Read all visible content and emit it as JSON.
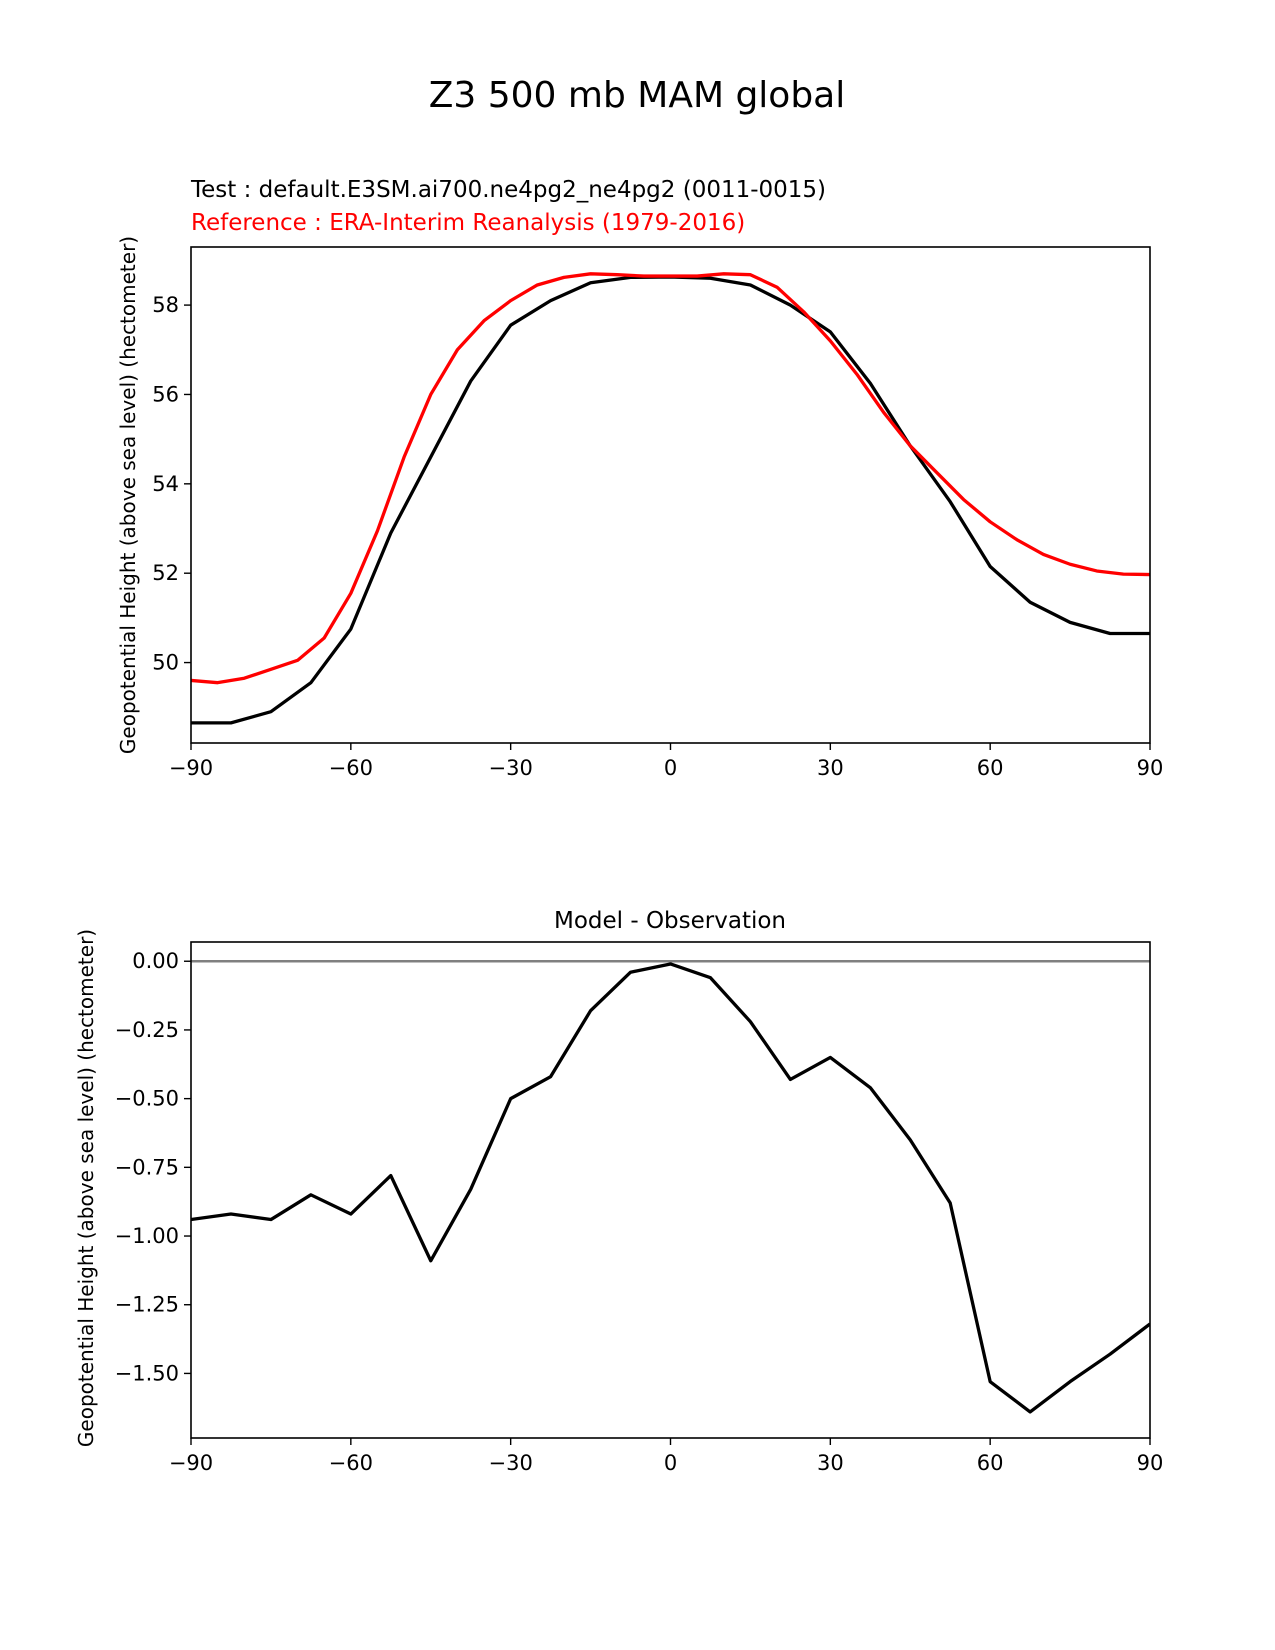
{
  "figure_title": "Z3 500 mb MAM global",
  "colors": {
    "test": "#000000",
    "reference": "#ff0000",
    "zero_line": "#808080"
  },
  "chart_data": [
    {
      "type": "line",
      "test_label": "Test : default.E3SM.ai700.ne4pg2_ne4pg2 (0011-0015)",
      "reference_label": "Reference : ERA-Interim Reanalysis (1979-2016)",
      "xlabel": "",
      "ylabel": "Geopotential Height (above sea level) (hectometer)",
      "xlim": [
        -90,
        90
      ],
      "ylim": [
        48.2,
        59.3
      ],
      "xticks": [
        -90,
        -60,
        -30,
        0,
        30,
        60,
        90
      ],
      "xtick_labels": [
        "−90",
        "−60",
        "−30",
        "0",
        "30",
        "60",
        "90"
      ],
      "yticks": [
        50,
        52,
        54,
        56,
        58
      ],
      "ytick_labels": [
        "50",
        "52",
        "54",
        "56",
        "58"
      ],
      "series": [
        {
          "name": "Test",
          "color": "#000000",
          "x": [
            -90,
            -82.5,
            -75,
            -67.5,
            -60,
            -52.5,
            -45,
            -37.5,
            -30,
            -22.5,
            -15,
            -7.5,
            0,
            7.5,
            15,
            22.5,
            30,
            37.5,
            45,
            52.5,
            60,
            67.5,
            75,
            82.5,
            90
          ],
          "y": [
            48.65,
            48.65,
            48.9,
            49.55,
            50.75,
            52.9,
            54.6,
            56.3,
            57.55,
            58.1,
            58.5,
            58.62,
            58.63,
            58.6,
            58.45,
            58.0,
            57.4,
            56.25,
            54.85,
            53.6,
            52.15,
            51.35,
            50.9,
            50.65,
            50.65
          ]
        },
        {
          "name": "Reference",
          "color": "#ff0000",
          "x": [
            -90,
            -85,
            -80,
            -75,
            -70,
            -65,
            -60,
            -55,
            -50,
            -45,
            -40,
            -35,
            -30,
            -25,
            -20,
            -15,
            -10,
            -5,
            0,
            5,
            10,
            15,
            20,
            25,
            30,
            35,
            40,
            45,
            50,
            55,
            60,
            65,
            70,
            75,
            80,
            85,
            90
          ],
          "y": [
            49.6,
            49.55,
            49.65,
            49.85,
            50.05,
            50.55,
            51.55,
            52.95,
            54.6,
            56.0,
            57.0,
            57.65,
            58.1,
            58.45,
            58.62,
            58.7,
            58.68,
            58.65,
            58.65,
            58.65,
            58.7,
            58.68,
            58.4,
            57.85,
            57.2,
            56.45,
            55.6,
            54.85,
            54.25,
            53.65,
            53.15,
            52.75,
            52.42,
            52.2,
            52.05,
            51.98,
            51.97
          ]
        }
      ]
    },
    {
      "type": "line",
      "title": "Model - Observation",
      "xlabel": "",
      "ylabel": "Geopotential Height (above sea level) (hectometer)",
      "xlim": [
        -90,
        90
      ],
      "ylim": [
        -1.735,
        0.07
      ],
      "xticks": [
        -90,
        -60,
        -30,
        0,
        30,
        60,
        90
      ],
      "xtick_labels": [
        "−90",
        "−60",
        "−30",
        "0",
        "30",
        "60",
        "90"
      ],
      "yticks": [
        0.0,
        -0.25,
        -0.5,
        -0.75,
        -1.0,
        -1.25,
        -1.5
      ],
      "ytick_labels": [
        "0.00",
        "−0.25",
        "−0.50",
        "−0.75",
        "−1.00",
        "−1.25",
        "−1.50"
      ],
      "zero_line": 0,
      "series": [
        {
          "name": "Model - Observation",
          "color": "#000000",
          "x": [
            -90,
            -82.5,
            -75,
            -67.5,
            -60,
            -52.5,
            -45,
            -37.5,
            -30,
            -22.5,
            -15,
            -7.5,
            0,
            7.5,
            15,
            22.5,
            30,
            37.5,
            45,
            52.5,
            60,
            67.5,
            75,
            82.5,
            90
          ],
          "y": [
            -0.94,
            -0.92,
            -0.94,
            -0.85,
            -0.92,
            -0.78,
            -1.09,
            -0.83,
            -0.5,
            -0.42,
            -0.18,
            -0.04,
            -0.01,
            -0.06,
            -0.22,
            -0.43,
            -0.35,
            -0.46,
            -0.65,
            -0.88,
            -1.53,
            -1.64,
            -1.53,
            -1.43,
            -1.32
          ]
        }
      ]
    }
  ]
}
